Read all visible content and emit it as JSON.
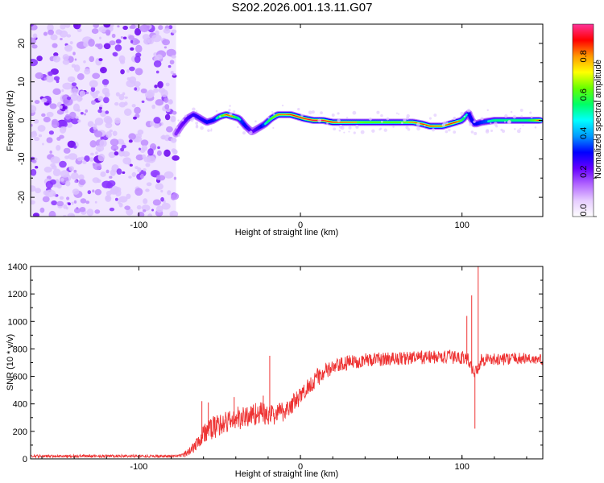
{
  "title": "S202.2026.001.13.11.G07",
  "chart_data": [
    {
      "type": "heatmap",
      "xlabel": "Height of straight line (km)",
      "ylabel": "Frequency (Hz)",
      "xlim": [
        -167,
        150
      ],
      "ylim": [
        -25,
        25
      ],
      "xticks": [
        -100,
        0,
        100
      ],
      "xtick_labels": [
        "-100",
        "0",
        "100"
      ],
      "yticks": [
        -20,
        -10,
        0,
        10,
        20
      ],
      "ytick_labels": [
        "-20",
        "-10",
        "0",
        "10",
        "20"
      ],
      "noise_region_x": [
        -167,
        -77
      ],
      "ridge": {
        "x": [
          -77,
          -74,
          -70,
          -66,
          -62,
          -58,
          -54,
          -50,
          -46,
          -42,
          -38,
          -34,
          -30,
          -26,
          -22,
          -18,
          -14,
          -10,
          -6,
          -2,
          2,
          8,
          14,
          20,
          30,
          40,
          50,
          60,
          70,
          76,
          80,
          84,
          88,
          92,
          96,
          100,
          104,
          106,
          108,
          112,
          120,
          130,
          140,
          148
        ],
        "freq": [
          -3.5,
          -1.5,
          0.5,
          1.5,
          0.5,
          -0.5,
          0,
          1,
          1.5,
          1,
          0.5,
          -1.5,
          -3,
          -2,
          -1,
          0.5,
          1.5,
          1.5,
          1.5,
          1,
          0.5,
          0,
          0,
          -0.5,
          -0.5,
          -0.5,
          -0.5,
          -0.5,
          -0.5,
          -1,
          -1.5,
          -1.5,
          -1.5,
          -1,
          -0.5,
          0,
          2,
          0,
          -1,
          -0.5,
          0,
          0,
          0,
          0
        ],
        "intensity": [
          0.3,
          0.35,
          0.4,
          0.45,
          0.45,
          0.5,
          0.5,
          0.7,
          0.85,
          0.75,
          0.6,
          0.5,
          0.35,
          0.45,
          0.6,
          0.75,
          0.8,
          0.8,
          0.85,
          0.9,
          0.9,
          0.9,
          0.9,
          0.85,
          0.8,
          0.75,
          0.75,
          0.75,
          0.8,
          0.85,
          0.85,
          0.8,
          0.8,
          0.85,
          0.85,
          0.7,
          0.5,
          0.5,
          0.5,
          0.55,
          0.65,
          0.65,
          0.65,
          0.85
        ]
      },
      "colorbar": {
        "label": "Normalized spectral amplitude",
        "range": [
          0,
          1
        ],
        "ticks": [
          0.0,
          0.2,
          0.4,
          0.6,
          0.8
        ],
        "tick_labels": [
          "0.0",
          "0.2",
          "0.4",
          "0.6",
          "0.8"
        ],
        "colors": [
          "#ffffff",
          "#e6ccff",
          "#b266ff",
          "#6600ff",
          "#0000ff",
          "#0099ff",
          "#00ffff",
          "#00ff66",
          "#66ff00",
          "#ffff00",
          "#ff9900",
          "#ff0000",
          "#ff3399"
        ]
      }
    },
    {
      "type": "line",
      "xlabel": "Height of straight line (km)",
      "ylabel": "SNR (10 * v/v)",
      "xlim": [
        -167,
        150
      ],
      "ylim": [
        0,
        1400
      ],
      "xticks": [
        -100,
        0,
        100
      ],
      "xtick_labels": [
        "-100",
        "0",
        "100"
      ],
      "yticks": [
        0,
        200,
        400,
        600,
        800,
        1000,
        1200,
        1400
      ],
      "ytick_labels": [
        "0",
        "200",
        "400",
        "600",
        "800",
        "1000",
        "1200",
        "1400"
      ],
      "line_color": "#ee3333",
      "envelope": {
        "x": [
          -167,
          -75,
          -70,
          -65,
          -60,
          -55,
          -50,
          -45,
          -40,
          -35,
          -30,
          -25,
          -20,
          -15,
          -10,
          -5,
          0,
          5,
          10,
          15,
          20,
          25,
          30,
          40,
          60,
          80,
          100,
          104,
          108,
          112,
          116,
          120,
          130,
          140,
          150
        ],
        "y": [
          20,
          20,
          40,
          110,
          180,
          220,
          250,
          270,
          290,
          300,
          320,
          340,
          310,
          330,
          350,
          400,
          450,
          530,
          590,
          630,
          660,
          680,
          700,
          720,
          730,
          740,
          740,
          720,
          620,
          720,
          730,
          720,
          730,
          730,
          720
        ]
      },
      "noise_amplitude": {
        "x": [
          -167,
          -75,
          -70,
          -60,
          -40,
          -20,
          0,
          20,
          40,
          80,
          100,
          150
        ],
        "y": [
          10,
          10,
          30,
          80,
          90,
          80,
          70,
          60,
          50,
          50,
          50,
          40
        ]
      },
      "spikes": [
        {
          "x": -61,
          "y": 420
        },
        {
          "x": -57,
          "y": 410
        },
        {
          "x": -41,
          "y": 450
        },
        {
          "x": -23,
          "y": 460
        },
        {
          "x": -19,
          "y": 750
        },
        {
          "x": 103,
          "y": 1040
        },
        {
          "x": 106,
          "y": 1190
        },
        {
          "x": 108,
          "y": 220
        },
        {
          "x": 110,
          "y": 1400
        }
      ]
    }
  ]
}
